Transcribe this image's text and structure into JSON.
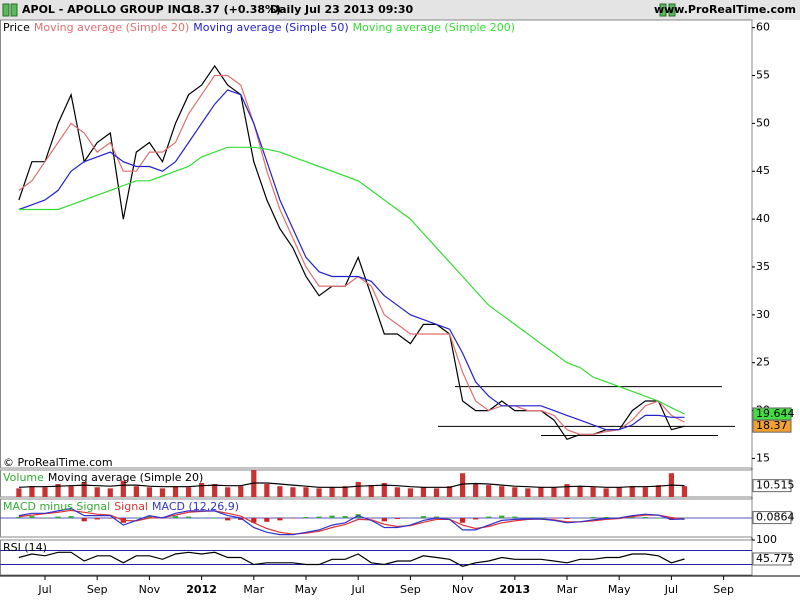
{
  "header": {
    "symbol": "APOL - APOLLO GROUP INC.",
    "quote": "18.37 (+0.38%)",
    "period": "Daily",
    "datetime": "Jul 23 2013 09:30",
    "site": "www.ProRealTime.com"
  },
  "chart_data": [
    {
      "type": "line",
      "watermark": "© ProRealTime.com",
      "categories": [
        null,
        null,
        "Jul",
        null,
        null,
        null,
        "Sep",
        null,
        null,
        null,
        "Nov",
        null,
        null,
        null,
        "2012",
        null,
        null,
        null,
        "Mar",
        null,
        null,
        null,
        "May",
        null,
        null,
        null,
        "Jul",
        null,
        null,
        null,
        "Sep",
        null,
        null,
        null,
        "Nov",
        null,
        null,
        null,
        "2013",
        null,
        null,
        null,
        "Mar",
        null,
        null,
        null,
        "May",
        null,
        null,
        null,
        "Jul",
        null,
        null,
        null,
        "Sep"
      ],
      "series": [
        {
          "name": "Price",
          "color": "#000000",
          "box_color": "#f0a030",
          "label_last": true,
          "values": [
            42,
            46,
            46,
            50,
            53,
            46,
            48,
            49,
            40,
            47,
            48,
            46,
            50,
            53,
            54,
            56,
            54,
            53,
            46,
            42,
            39,
            37,
            34,
            32,
            33,
            33,
            36,
            32,
            28,
            28,
            27,
            29,
            29,
            28,
            21,
            20,
            20,
            21,
            20,
            20,
            20,
            19,
            17,
            17.5,
            17.5,
            18,
            18,
            20,
            21,
            21,
            18,
            18.37,
            null,
            null,
            null
          ]
        },
        {
          "name": "Moving average (Simple 20)",
          "color": "#e07070",
          "values": [
            43,
            44,
            46,
            48,
            50,
            49,
            47,
            48,
            45,
            45,
            47,
            47,
            48,
            51,
            53,
            55,
            55,
            54,
            50,
            45,
            41,
            38,
            35,
            33,
            33,
            33,
            34,
            33,
            30,
            29,
            28,
            28,
            28,
            28,
            24,
            21,
            20,
            20.5,
            20.5,
            20,
            20,
            19.5,
            18,
            17.5,
            17.5,
            17.8,
            18,
            19,
            20.5,
            21,
            19.5,
            18.8,
            null,
            null,
            null
          ]
        },
        {
          "name": "Moving average (Simple 50)",
          "color": "#2222cc",
          "values": [
            41,
            41.5,
            42,
            43,
            45,
            46,
            46.5,
            47,
            46,
            45.5,
            45.5,
            45,
            46,
            48,
            50,
            52,
            53.5,
            53,
            50,
            46,
            42,
            39,
            36,
            34.5,
            34,
            34,
            34,
            33.5,
            32,
            31,
            30,
            29.5,
            29,
            28.5,
            26,
            23,
            21.5,
            20.5,
            20.5,
            20.5,
            20.5,
            20,
            19.5,
            19,
            18.5,
            18,
            18,
            18.5,
            19.5,
            19.5,
            19.3,
            19.3,
            null,
            null,
            null
          ]
        },
        {
          "name": "Moving average (Simple 200)",
          "color": "#33dd33",
          "box_color": "#44dd44",
          "label_last": true,
          "values": [
            41,
            41,
            41,
            41,
            41.5,
            42,
            42.5,
            43,
            43.5,
            44,
            44,
            44.5,
            45,
            45.5,
            46.5,
            47,
            47.5,
            47.5,
            47.5,
            47.3,
            47,
            46.5,
            46,
            45.5,
            45,
            44.5,
            44,
            43,
            42,
            41,
            40,
            38.5,
            37,
            35.5,
            34,
            32.5,
            31,
            30,
            29,
            28,
            27,
            26,
            25,
            24.5,
            23.5,
            23,
            22.5,
            22,
            21.5,
            21,
            20.3,
            19.644,
            null,
            null,
            null
          ]
        }
      ],
      "levels": [
        22.5,
        18.35,
        17.4
      ],
      "ylim": [
        14,
        60.8
      ],
      "yticks": [
        15,
        20,
        25,
        30,
        35,
        40,
        45,
        50,
        55,
        60
      ]
    },
    {
      "type": "bar",
      "series": [
        {
          "name": "Volume",
          "color": "#33aa33",
          "bar_color": "#c83232",
          "values": [
            8,
            10,
            9,
            12,
            10,
            14,
            9,
            8,
            15,
            10,
            9,
            8,
            10,
            9,
            13,
            12,
            9,
            10,
            25,
            12,
            10,
            9,
            9,
            8,
            9,
            10,
            14,
            11,
            13,
            9,
            8,
            9,
            8,
            10,
            22,
            12,
            11,
            10,
            9,
            8,
            9,
            9,
            12,
            10,
            9,
            8,
            9,
            10,
            9,
            11,
            22,
            10,
            null,
            null,
            null
          ]
        },
        {
          "name": "Moving average (Simple 20)",
          "color": "#000000",
          "type": "line",
          "box_color": "#ffffff",
          "label_last": true,
          "values": [
            9,
            9.5,
            9.5,
            10,
            10.5,
            11,
            10.5,
            10,
            11,
            11,
            10,
            9.5,
            9.5,
            9.5,
            10.5,
            11,
            10.5,
            10.5,
            13,
            13,
            12,
            11,
            10,
            9,
            9,
            9,
            10,
            10.5,
            11,
            10.5,
            9.5,
            9,
            9,
            9,
            12,
            12.5,
            12,
            11,
            10,
            9.5,
            9,
            9,
            9.5,
            10,
            9.5,
            9,
            9,
            9.5,
            9.5,
            10,
            11,
            10.515,
            null,
            null,
            null
          ]
        }
      ],
      "ylim": [
        0,
        25
      ]
    },
    {
      "type": "bar",
      "series": [
        {
          "name": "MACD minus Signal",
          "color": "#33aa33",
          "down_color": "#cc2222",
          "box_color": "#ffffff",
          "label_last": true,
          "values": [
            0.2,
            0.4,
            0.1,
            0.3,
            0.4,
            -0.7,
            -0.3,
            -0.1,
            -1,
            0.1,
            0.5,
            -0.1,
            0.4,
            0.3,
            0.1,
            0,
            -0.5,
            -0.4,
            -1,
            -0.8,
            -0.5,
            -0.1,
            0.2,
            0.3,
            0.5,
            0.4,
            0.8,
            -0.1,
            -0.7,
            -0.2,
            0.1,
            0.4,
            0.3,
            0,
            -1,
            -0.3,
            0.3,
            0.5,
            0.3,
            0.1,
            0,
            -0.1,
            -0.2,
            0,
            0.2,
            0.2,
            0.1,
            0.2,
            0.2,
            0,
            -0.4,
            0.0864,
            null,
            null,
            null
          ]
        },
        {
          "name": "Signal",
          "color": "#dd3333",
          "type": "line",
          "values": [
            0.3,
            0.6,
            0.9,
            1.2,
            1.6,
            1.2,
            0.8,
            0.6,
            -0.5,
            -0.6,
            0,
            0.1,
            0.6,
            1.2,
            1.4,
            1.5,
            1,
            0.4,
            -1,
            -2.2,
            -3,
            -3.4,
            -3.2,
            -2.8,
            -2,
            -1.4,
            -0.3,
            -0.4,
            -1.3,
            -1.8,
            -1.6,
            -0.9,
            -0.3,
            -0.3,
            -1.5,
            -2.2,
            -1.8,
            -1,
            -0.6,
            -0.3,
            -0.2,
            -0.4,
            -0.8,
            -0.8,
            -0.6,
            -0.3,
            -0.1,
            0.3,
            0.6,
            0.6,
            0.1,
            -0.29,
            null,
            null,
            null
          ]
        },
        {
          "name": "MACD (12,26,9)",
          "color": "#3333cc",
          "type": "line",
          "values": [
            0.5,
            1,
            1,
            1.5,
            2,
            0.5,
            0.5,
            0.5,
            -1.5,
            -0.5,
            0.5,
            0,
            1,
            1.5,
            1.5,
            1.5,
            0.5,
            0,
            -2,
            -3,
            -3.5,
            -3.5,
            -3,
            -2.5,
            -1.5,
            -1,
            0.5,
            -0.5,
            -2,
            -2,
            -1.5,
            -0.5,
            0,
            -0.3,
            -2.5,
            -2.5,
            -1.5,
            -0.5,
            -0.3,
            -0.2,
            -0.2,
            -0.5,
            -1,
            -0.8,
            -0.4,
            -0.1,
            0,
            0.5,
            0.8,
            0.6,
            -0.3,
            -0.2,
            null,
            null,
            null
          ]
        }
      ],
      "ylim": [
        -4,
        4
      ]
    },
    {
      "type": "line",
      "series": [
        {
          "name": "RSI (14)",
          "color": "#000000",
          "box_color": "#ffffff",
          "label_last": true,
          "values": [
            50,
            60,
            55,
            65,
            65,
            40,
            55,
            55,
            35,
            55,
            55,
            45,
            60,
            65,
            60,
            65,
            50,
            50,
            30,
            35,
            35,
            35,
            30,
            30,
            45,
            45,
            60,
            35,
            30,
            40,
            40,
            55,
            50,
            45,
            25,
            35,
            40,
            50,
            45,
            45,
            45,
            40,
            35,
            45,
            45,
            50,
            50,
            60,
            60,
            55,
            35,
            45.775,
            null,
            null,
            null
          ]
        }
      ],
      "levels": [
        70,
        30
      ],
      "ylim": [
        0,
        100
      ],
      "yticks": [
        100
      ]
    }
  ]
}
